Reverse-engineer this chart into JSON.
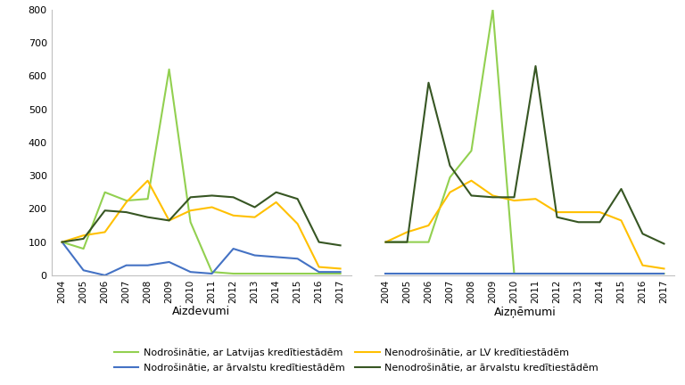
{
  "years": [
    2004,
    2005,
    2006,
    2007,
    2008,
    2009,
    2010,
    2011,
    2012,
    2013,
    2014,
    2015,
    2016,
    2017
  ],
  "aizdevumi": {
    "nodrosinate_lv": [
      100,
      80,
      250,
      225,
      230,
      620,
      160,
      10,
      5,
      5,
      5,
      5,
      5,
      5
    ],
    "nodrosinate_arv": [
      100,
      15,
      0,
      30,
      30,
      40,
      10,
      5,
      80,
      60,
      55,
      50,
      10,
      10
    ],
    "nenodrosinate_lv": [
      100,
      120,
      130,
      220,
      285,
      165,
      195,
      205,
      180,
      175,
      220,
      155,
      25,
      20
    ],
    "nenodrosinate_arv": [
      100,
      110,
      195,
      190,
      175,
      165,
      235,
      240,
      235,
      205,
      250,
      230,
      100,
      90
    ]
  },
  "aiznemumi": {
    "nodrosinate_lv": [
      100,
      100,
      100,
      295,
      375,
      800,
      5,
      5,
      5,
      5,
      5,
      5,
      5,
      5
    ],
    "nodrosinate_arv": [
      5,
      5,
      5,
      5,
      5,
      5,
      5,
      5,
      5,
      5,
      5,
      5,
      5,
      5
    ],
    "nenodrosinate_lv": [
      100,
      130,
      150,
      250,
      285,
      240,
      225,
      230,
      190,
      190,
      190,
      165,
      30,
      20
    ],
    "nenodrosinate_arv": [
      100,
      100,
      580,
      330,
      240,
      235,
      235,
      630,
      175,
      160,
      160,
      260,
      125,
      95
    ]
  },
  "colors": {
    "nodrosinate_lv": "#92D050",
    "nodrosinate_arv": "#4472C4",
    "nenodrosinate_lv": "#FFC000",
    "nenodrosinate_arv": "#375623"
  },
  "legend_labels": [
    "Nodrošinātie, ar Latvijas kredītiestādēm",
    "Nodrošinātie, ar ārvalstu kredītiestādēm",
    "Nenodrošinātie, ar LV kredītiestādēm",
    "Nenodrošinātie, ar ārvalstu kredītiestādēm"
  ],
  "xlabel_left": "Aizdevumi",
  "xlabel_right": "Aizņēmumi",
  "ylim": [
    0,
    800
  ],
  "yticks": [
    0,
    100,
    200,
    300,
    400,
    500,
    600,
    700,
    800
  ],
  "line_width": 1.5
}
